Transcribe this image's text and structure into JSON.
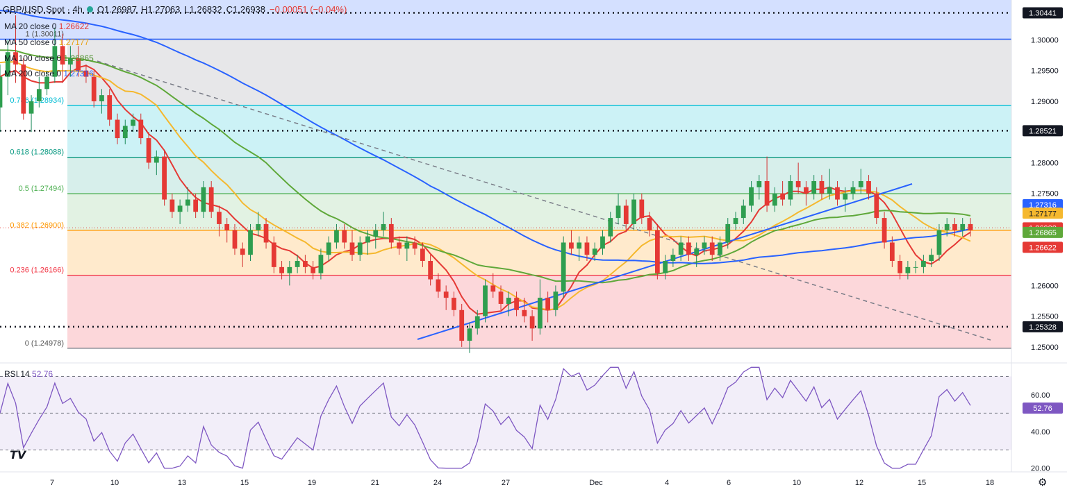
{
  "header": {
    "symbol": "GBP/USD Spot · 4h",
    "open": "O1.26987",
    "high": "H1.27063",
    "low": "L1.26832",
    "close": "C1.26938",
    "change": "−0.00051 (−0.04%)"
  },
  "ma_legend": [
    {
      "label": "MA 20 close 0",
      "value": "1.26622",
      "color": "#e53935"
    },
    {
      "label": "MA 50 close 0",
      "value": "1.27177",
      "color": "#f5b82e"
    },
    {
      "label": "MA 100 close 0",
      "value": "1.26865",
      "color": "#5fa83a"
    },
    {
      "label": "MA 200 close 0",
      "value": "1.27316",
      "color": "#2962ff"
    }
  ],
  "rsi": {
    "label": "RSI 14",
    "value": "52.76",
    "color": "#7e57c2",
    "ticks": [
      "60.00",
      "40.00",
      "20.00"
    ],
    "upper": 70,
    "lower": 30,
    "current_badge": "52.76"
  },
  "chart_data": {
    "type": "candlestick",
    "title": "GBP/USD Spot · 4h",
    "ylim": [
      1.2475,
      1.3065
    ],
    "y_ticks": [
      "1.30000",
      "1.29500",
      "1.29000",
      "1.28000",
      "1.27500",
      "1.26000",
      "1.25500",
      "1.25000"
    ],
    "x_labels": [
      "7",
      "10",
      "13",
      "15",
      "19",
      "21",
      "24",
      "27",
      "Dec",
      "4",
      "6",
      "10",
      "12",
      "15",
      "18"
    ],
    "fibonacci": [
      {
        "label": "0 (1.24978)",
        "level": 1.24978
      },
      {
        "label": "0.236 (1.26166)",
        "level": 1.26166
      },
      {
        "label": "0.382 (1.26900)",
        "level": 1.269
      },
      {
        "label": "0.5 (1.27494)",
        "level": 1.27494
      },
      {
        "label": "0.618 (1.28088)",
        "level": 1.28088
      },
      {
        "label": "0.786 (1.28934)",
        "level": 1.28934
      },
      {
        "label": "1 (1.30011)",
        "level": 1.30011
      }
    ],
    "horizontal_levels": [
      {
        "label": "1.30441",
        "level": 1.30441
      },
      {
        "label": "1.28521",
        "level": 1.28521
      },
      {
        "label": "1.25328",
        "level": 1.25328
      }
    ],
    "price_badges": [
      {
        "label": "1.27316",
        "level": 1.27316,
        "color": "#2962ff"
      },
      {
        "label": "1.27177",
        "level": 1.27177,
        "color": "#f5b82e"
      },
      {
        "label": "1.26938",
        "level": 1.26938,
        "color": "#e53935"
      },
      {
        "label": "1.26865",
        "level": 1.26865,
        "color": "#5fa83a"
      },
      {
        "label": "1.26622",
        "level": 1.26622,
        "color": "#e53935"
      }
    ],
    "candles": [
      [
        1.289,
        1.296,
        1.285,
        1.294
      ],
      [
        1.294,
        1.3,
        1.291,
        1.298
      ],
      [
        1.298,
        1.304,
        1.293,
        1.296
      ],
      [
        1.296,
        1.297,
        1.287,
        1.288
      ],
      [
        1.288,
        1.291,
        1.285,
        1.29
      ],
      [
        1.29,
        1.294,
        1.289,
        1.292
      ],
      [
        1.292,
        1.295,
        1.291,
        1.294
      ],
      [
        1.294,
        1.302,
        1.293,
        1.299
      ],
      [
        1.299,
        1.301,
        1.293,
        1.296
      ],
      [
        1.296,
        1.299,
        1.294,
        1.297
      ],
      [
        1.297,
        1.299,
        1.294,
        1.295
      ],
      [
        1.295,
        1.296,
        1.293,
        1.294
      ],
      [
        1.294,
        1.295,
        1.289,
        1.29
      ],
      [
        1.29,
        1.292,
        1.288,
        1.291
      ],
      [
        1.291,
        1.292,
        1.286,
        1.287
      ],
      [
        1.287,
        1.288,
        1.283,
        1.284
      ],
      [
        1.284,
        1.287,
        1.283,
        1.286
      ],
      [
        1.286,
        1.288,
        1.285,
        1.287
      ],
      [
        1.287,
        1.288,
        1.283,
        1.284
      ],
      [
        1.284,
        1.285,
        1.279,
        1.28
      ],
      [
        1.28,
        1.282,
        1.278,
        1.281
      ],
      [
        1.281,
        1.282,
        1.273,
        1.274
      ],
      [
        1.274,
        1.275,
        1.271,
        1.272
      ],
      [
        1.272,
        1.274,
        1.27,
        1.273
      ],
      [
        1.273,
        1.276,
        1.272,
        1.274
      ],
      [
        1.274,
        1.275,
        1.271,
        1.272
      ],
      [
        1.272,
        1.277,
        1.271,
        1.276
      ],
      [
        1.276,
        1.277,
        1.271,
        1.272
      ],
      [
        1.272,
        1.273,
        1.268,
        1.27
      ],
      [
        1.27,
        1.271,
        1.267,
        1.269
      ],
      [
        1.269,
        1.27,
        1.265,
        1.266
      ],
      [
        1.266,
        1.267,
        1.263,
        1.265
      ],
      [
        1.265,
        1.27,
        1.264,
        1.269
      ],
      [
        1.269,
        1.272,
        1.268,
        1.27
      ],
      [
        1.27,
        1.271,
        1.266,
        1.267
      ],
      [
        1.267,
        1.268,
        1.262,
        1.263
      ],
      [
        1.263,
        1.264,
        1.261,
        1.262
      ],
      [
        1.262,
        1.264,
        1.26,
        1.263
      ],
      [
        1.263,
        1.265,
        1.262,
        1.264
      ],
      [
        1.264,
        1.265,
        1.262,
        1.263
      ],
      [
        1.263,
        1.264,
        1.261,
        1.262
      ],
      [
        1.262,
        1.266,
        1.261,
        1.265
      ],
      [
        1.265,
        1.268,
        1.264,
        1.267
      ],
      [
        1.267,
        1.27,
        1.266,
        1.269
      ],
      [
        1.269,
        1.27,
        1.266,
        1.267
      ],
      [
        1.267,
        1.269,
        1.264,
        1.265
      ],
      [
        1.265,
        1.268,
        1.264,
        1.267
      ],
      [
        1.267,
        1.269,
        1.265,
        1.268
      ],
      [
        1.268,
        1.27,
        1.266,
        1.269
      ],
      [
        1.269,
        1.272,
        1.268,
        1.27
      ],
      [
        1.27,
        1.271,
        1.266,
        1.267
      ],
      [
        1.267,
        1.268,
        1.265,
        1.266
      ],
      [
        1.266,
        1.268,
        1.264,
        1.267
      ],
      [
        1.267,
        1.268,
        1.265,
        1.266
      ],
      [
        1.266,
        1.267,
        1.263,
        1.264
      ],
      [
        1.264,
        1.265,
        1.26,
        1.261
      ],
      [
        1.261,
        1.262,
        1.258,
        1.259
      ],
      [
        1.259,
        1.26,
        1.256,
        1.258
      ],
      [
        1.258,
        1.259,
        1.255,
        1.256
      ],
      [
        1.256,
        1.257,
        1.25,
        1.251
      ],
      [
        1.251,
        1.254,
        1.249,
        1.253
      ],
      [
        1.253,
        1.256,
        1.252,
        1.255
      ],
      [
        1.255,
        1.261,
        1.254,
        1.26
      ],
      [
        1.26,
        1.262,
        1.258,
        1.259
      ],
      [
        1.259,
        1.26,
        1.256,
        1.257
      ],
      [
        1.257,
        1.259,
        1.255,
        1.258
      ],
      [
        1.258,
        1.259,
        1.255,
        1.256
      ],
      [
        1.256,
        1.258,
        1.254,
        1.255
      ],
      [
        1.255,
        1.256,
        1.251,
        1.253
      ],
      [
        1.253,
        1.261,
        1.252,
        1.258
      ],
      [
        1.258,
        1.259,
        1.254,
        1.256
      ],
      [
        1.256,
        1.26,
        1.255,
        1.259
      ],
      [
        1.259,
        1.268,
        1.258,
        1.267
      ],
      [
        1.267,
        1.269,
        1.265,
        1.266
      ],
      [
        1.266,
        1.268,
        1.264,
        1.267
      ],
      [
        1.267,
        1.268,
        1.264,
        1.265
      ],
      [
        1.265,
        1.267,
        1.264,
        1.266
      ],
      [
        1.266,
        1.269,
        1.265,
        1.268
      ],
      [
        1.268,
        1.272,
        1.267,
        1.271
      ],
      [
        1.271,
        1.275,
        1.27,
        1.273
      ],
      [
        1.273,
        1.274,
        1.269,
        1.27
      ],
      [
        1.27,
        1.275,
        1.269,
        1.274
      ],
      [
        1.274,
        1.275,
        1.27,
        1.271
      ],
      [
        1.271,
        1.272,
        1.268,
        1.269
      ],
      [
        1.269,
        1.27,
        1.261,
        1.262
      ],
      [
        1.262,
        1.265,
        1.261,
        1.264
      ],
      [
        1.264,
        1.266,
        1.263,
        1.265
      ],
      [
        1.265,
        1.268,
        1.264,
        1.267
      ],
      [
        1.267,
        1.268,
        1.264,
        1.265
      ],
      [
        1.265,
        1.267,
        1.263,
        1.266
      ],
      [
        1.266,
        1.268,
        1.265,
        1.267
      ],
      [
        1.267,
        1.268,
        1.264,
        1.265
      ],
      [
        1.265,
        1.268,
        1.264,
        1.267
      ],
      [
        1.267,
        1.271,
        1.266,
        1.27
      ],
      [
        1.27,
        1.272,
        1.269,
        1.271
      ],
      [
        1.271,
        1.274,
        1.27,
        1.273
      ],
      [
        1.273,
        1.277,
        1.272,
        1.276
      ],
      [
        1.276,
        1.278,
        1.274,
        1.277
      ],
      [
        1.277,
        1.281,
        1.272,
        1.273
      ],
      [
        1.273,
        1.276,
        1.272,
        1.275
      ],
      [
        1.275,
        1.277,
        1.273,
        1.274
      ],
      [
        1.274,
        1.278,
        1.273,
        1.277
      ],
      [
        1.277,
        1.28,
        1.275,
        1.276
      ],
      [
        1.276,
        1.277,
        1.273,
        1.275
      ],
      [
        1.275,
        1.278,
        1.274,
        1.277
      ],
      [
        1.277,
        1.278,
        1.274,
        1.275
      ],
      [
        1.275,
        1.279,
        1.274,
        1.276
      ],
      [
        1.276,
        1.277,
        1.273,
        1.274
      ],
      [
        1.274,
        1.276,
        1.272,
        1.275
      ],
      [
        1.275,
        1.277,
        1.274,
        1.276
      ],
      [
        1.276,
        1.279,
        1.275,
        1.277
      ],
      [
        1.277,
        1.278,
        1.274,
        1.275
      ],
      [
        1.275,
        1.276,
        1.27,
        1.271
      ],
      [
        1.271,
        1.272,
        1.266,
        1.267
      ],
      [
        1.267,
        1.268,
        1.263,
        1.264
      ],
      [
        1.264,
        1.265,
        1.261,
        1.262
      ],
      [
        1.262,
        1.264,
        1.261,
        1.263
      ],
      [
        1.263,
        1.264,
        1.262,
        1.263
      ],
      [
        1.263,
        1.265,
        1.262,
        1.264
      ],
      [
        1.264,
        1.266,
        1.263,
        1.265
      ],
      [
        1.265,
        1.27,
        1.264,
        1.269
      ],
      [
        1.269,
        1.271,
        1.268,
        1.27
      ],
      [
        1.27,
        1.271,
        1.268,
        1.269
      ],
      [
        1.269,
        1.271,
        1.268,
        1.27
      ],
      [
        1.27,
        1.271,
        1.268,
        1.269
      ]
    ]
  }
}
